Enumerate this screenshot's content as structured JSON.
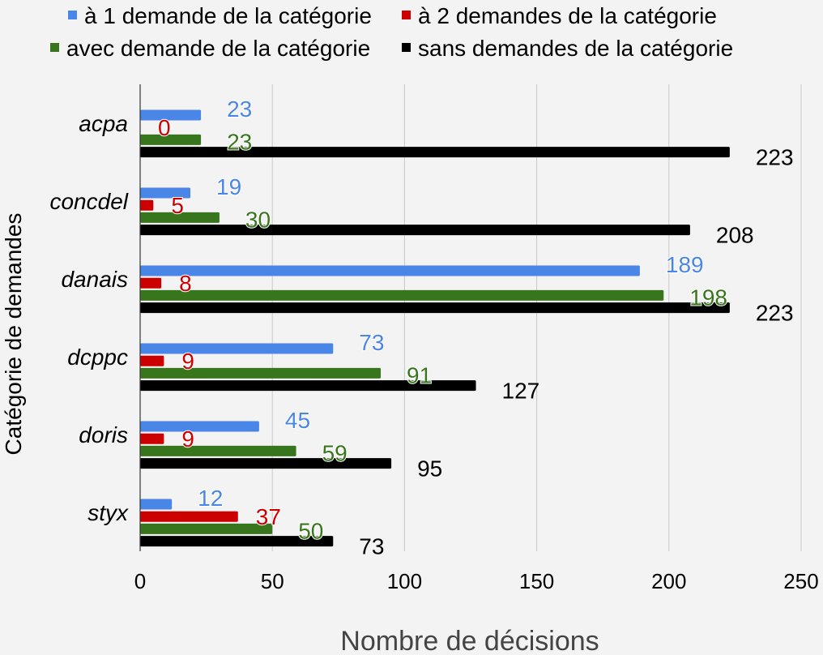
{
  "chart_data": {
    "type": "bar",
    "orientation": "horizontal",
    "categories": [
      "acpa",
      "concdel",
      "danais",
      "dcppc",
      "doris",
      "styx"
    ],
    "series": [
      {
        "name": "à 1 demande de la catégorie",
        "color": "#4a86e8",
        "values": [
          23,
          19,
          189,
          73,
          45,
          12
        ]
      },
      {
        "name": "à 2 demandes de la catégorie",
        "color": "#cc0000",
        "values": [
          0,
          5,
          8,
          9,
          9,
          37
        ]
      },
      {
        "name": "avec demande de la catégorie",
        "color": "#38761d",
        "values": [
          23,
          30,
          198,
          91,
          59,
          50
        ]
      },
      {
        "name": "sans demandes de la catégorie",
        "color": "#000000",
        "values": [
          223,
          208,
          223,
          127,
          95,
          73
        ]
      }
    ],
    "xlabel": "Nombre de décisions",
    "ylabel": "Catégorie de demandes",
    "xlim": [
      0,
      250
    ],
    "xticks": [
      "0",
      "50",
      "100",
      "150",
      "200",
      "250"
    ],
    "grid": "vertical",
    "legend_position": "top",
    "data_labels": true
  }
}
